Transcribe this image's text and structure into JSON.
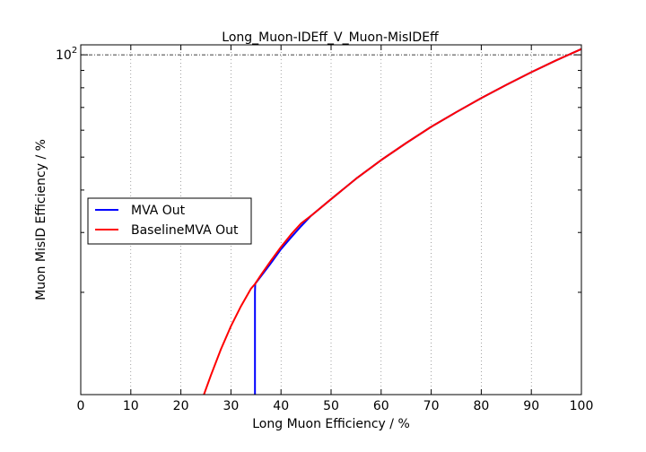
{
  "chart_data": {
    "type": "line",
    "title": "Long_Muon-IDEff_V_Muon-MisIDEff",
    "xlabel": "Long Muon Efficiency / %",
    "ylabel": "Muon MisID Efficiency / %",
    "xlim": [
      0,
      100
    ],
    "ylim": [
      10,
      107
    ],
    "yscale": "log",
    "grid": true,
    "legend": "center-left",
    "x_ticks": [
      0,
      10,
      20,
      30,
      40,
      50,
      60,
      70,
      80,
      90,
      100
    ],
    "x_tick_labels": [
      "0",
      "10",
      "20",
      "30",
      "40",
      "50",
      "60",
      "70",
      "80",
      "90",
      "100"
    ],
    "y_major_tick": 100,
    "y_major_label_base": "10",
    "y_major_label_exp": "2",
    "series": [
      {
        "name": "MVA Out",
        "color": "#0000ff",
        "x": [
          34.8,
          34.8,
          34.85,
          36,
          38,
          40,
          42,
          44,
          46,
          50,
          55,
          60,
          65,
          70,
          75,
          80,
          85,
          90,
          95,
          100
        ],
        "y": [
          10,
          20,
          21.2,
          22.3,
          24.4,
          26.8,
          29.0,
          31.3,
          33.6,
          37.6,
          43.2,
          49.0,
          55.0,
          61.4,
          67.8,
          74.6,
          81.6,
          88.9,
          96.4,
          104
        ]
      },
      {
        "name": "BaselineMVA Out",
        "color": "#ff0000",
        "x": [
          24.6,
          26,
          28,
          30,
          32,
          34,
          34.85,
          36,
          38,
          40,
          42,
          44,
          46,
          50,
          55,
          60,
          65,
          70,
          75,
          80,
          85,
          90,
          95,
          100
        ],
        "y": [
          10,
          11.4,
          13.6,
          15.9,
          18.2,
          20.5,
          21.2,
          22.5,
          24.8,
          27.2,
          29.6,
          31.9,
          33.6,
          37.6,
          43.2,
          49.0,
          55.0,
          61.4,
          67.8,
          74.6,
          81.6,
          88.9,
          96.4,
          104
        ]
      }
    ]
  }
}
